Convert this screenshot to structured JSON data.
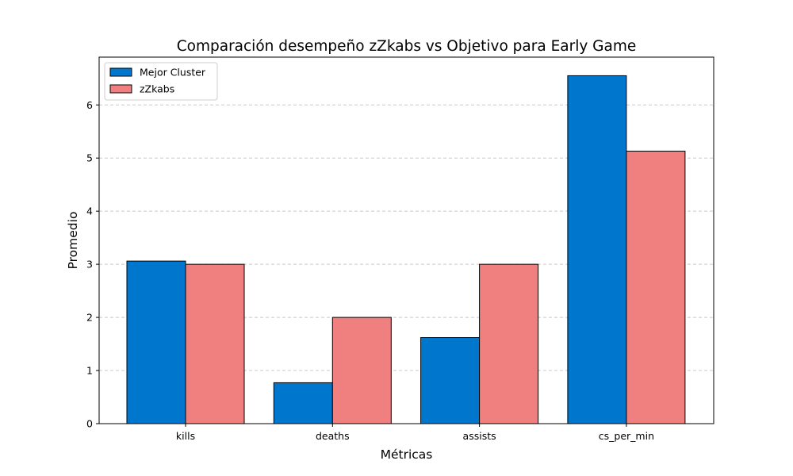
{
  "chart_data": {
    "type": "bar",
    "title": "Comparación desempeño zZkabs vs Objetivo para Early Game",
    "xlabel": "Métricas",
    "ylabel": "Promedio",
    "categories": [
      "kills",
      "deaths",
      "assists",
      "cs_per_min"
    ],
    "series": [
      {
        "name": "Mejor Cluster",
        "color": "#0077cc",
        "values": [
          3.06,
          0.77,
          1.62,
          6.55
        ]
      },
      {
        "name": "zZkabs",
        "color": "#f08080",
        "values": [
          3.0,
          2.0,
          3.0,
          5.13
        ]
      }
    ],
    "ylim": [
      0,
      6.9
    ],
    "yticks": [
      0,
      1,
      2,
      3,
      4,
      5,
      6
    ],
    "grid": "y-dashed",
    "legend": "top-left"
  }
}
